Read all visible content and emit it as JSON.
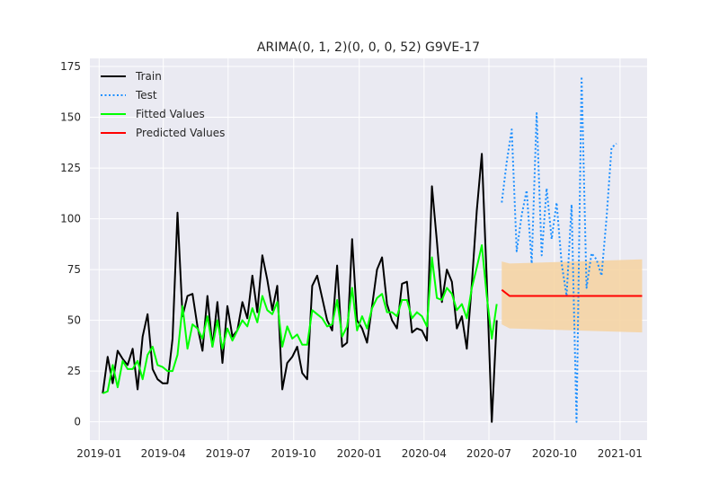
{
  "chart_data": {
    "type": "line",
    "title": "ARIMA(0, 1, 2)(0, 0, 0, 52) G9VE-17",
    "xlabel": "",
    "ylabel": "",
    "x_ticks": [
      "2019-01",
      "2019-04",
      "2019-07",
      "2019-10",
      "2020-01",
      "2020-04",
      "2020-07",
      "2020-10",
      "2021-01"
    ],
    "y_ticks": [
      0,
      25,
      50,
      75,
      100,
      125,
      150,
      175
    ],
    "xlim": [
      "2018-12-19",
      "2021-02-08"
    ],
    "ylim": [
      -9,
      179
    ],
    "grid": true,
    "legend_position": "top-left",
    "colors": {
      "background": "#eaeaf2",
      "grid": "#ffffff",
      "train": "#000000",
      "test": "#1e90ff",
      "fitted": "#00ff00",
      "predicted": "#ff0000",
      "confidence": "#f5d4a4"
    },
    "legend": [
      {
        "name": "Train",
        "key": "train"
      },
      {
        "name": "Test",
        "key": "test"
      },
      {
        "name": "Fitted Values",
        "key": "fitted"
      },
      {
        "name": "Predicted Values",
        "key": "predicted"
      }
    ],
    "series": {
      "train": {
        "name": "Train",
        "x": [
          "2019-01-06",
          "2019-01-13",
          "2019-01-20",
          "2019-01-27",
          "2019-02-03",
          "2019-02-10",
          "2019-02-17",
          "2019-02-24",
          "2019-03-03",
          "2019-03-10",
          "2019-03-17",
          "2019-03-24",
          "2019-03-31",
          "2019-04-07",
          "2019-04-14",
          "2019-04-21",
          "2019-04-28",
          "2019-05-05",
          "2019-05-12",
          "2019-05-19",
          "2019-05-26",
          "2019-06-02",
          "2019-06-09",
          "2019-06-16",
          "2019-06-23",
          "2019-06-30",
          "2019-07-07",
          "2019-07-14",
          "2019-07-21",
          "2019-07-28",
          "2019-08-04",
          "2019-08-11",
          "2019-08-18",
          "2019-08-25",
          "2019-09-01",
          "2019-09-08",
          "2019-09-15",
          "2019-09-22",
          "2019-09-29",
          "2019-10-06",
          "2019-10-13",
          "2019-10-20",
          "2019-10-27",
          "2019-11-03",
          "2019-11-10",
          "2019-11-17",
          "2019-11-24",
          "2019-12-01",
          "2019-12-08",
          "2019-12-15",
          "2019-12-22",
          "2019-12-29",
          "2020-01-05",
          "2020-01-12",
          "2020-01-19",
          "2020-01-26",
          "2020-02-02",
          "2020-02-09",
          "2020-02-16",
          "2020-02-23",
          "2020-03-01",
          "2020-03-08",
          "2020-03-15",
          "2020-03-22",
          "2020-03-29",
          "2020-04-05",
          "2020-04-12",
          "2020-04-19",
          "2020-04-26",
          "2020-05-03",
          "2020-05-10",
          "2020-05-17",
          "2020-05-24",
          "2020-05-31",
          "2020-06-07",
          "2020-06-14",
          "2020-06-21",
          "2020-06-28",
          "2020-07-05",
          "2020-07-12"
        ],
        "values": [
          14,
          32,
          19,
          35,
          31,
          28,
          36,
          16,
          42,
          53,
          26,
          21,
          19,
          19,
          41,
          103,
          52,
          62,
          63,
          47,
          35,
          62,
          37,
          59,
          29,
          57,
          42,
          45,
          59,
          51,
          72,
          54,
          82,
          70,
          55,
          67,
          16,
          29,
          32,
          37,
          24,
          21,
          67,
          72,
          61,
          50,
          45,
          77,
          37,
          39,
          90,
          50,
          46,
          39,
          57,
          75,
          81,
          58,
          50,
          46,
          68,
          69,
          44,
          46,
          45,
          40,
          116,
          89,
          59,
          75,
          69,
          46,
          52,
          36,
          68,
          104,
          132,
          70,
          0,
          50
        ]
      },
      "test": {
        "name": "Test",
        "x": [
          "2020-07-19",
          "2020-07-26",
          "2020-08-02",
          "2020-08-09",
          "2020-08-16",
          "2020-08-23",
          "2020-08-30",
          "2020-09-06",
          "2020-09-13",
          "2020-09-20",
          "2020-09-27",
          "2020-10-04",
          "2020-10-11",
          "2020-10-18",
          "2020-10-25",
          "2020-11-01",
          "2020-11-08",
          "2020-11-15",
          "2020-11-22",
          "2020-11-29",
          "2020-12-06",
          "2020-12-13",
          "2020-12-20",
          "2020-12-27"
        ],
        "values": [
          108,
          128,
          144,
          84,
          102,
          114,
          78,
          152,
          82,
          115,
          90,
          108,
          78,
          62,
          107,
          0,
          170,
          66,
          83,
          80,
          72,
          100,
          135,
          137
        ]
      },
      "fitted": {
        "name": "Fitted Values",
        "x": [
          "2019-01-06",
          "2019-01-13",
          "2019-01-20",
          "2019-01-27",
          "2019-02-03",
          "2019-02-10",
          "2019-02-17",
          "2019-02-24",
          "2019-03-03",
          "2019-03-10",
          "2019-03-17",
          "2019-03-24",
          "2019-03-31",
          "2019-04-07",
          "2019-04-14",
          "2019-04-21",
          "2019-04-28",
          "2019-05-05",
          "2019-05-12",
          "2019-05-19",
          "2019-05-26",
          "2019-06-02",
          "2019-06-09",
          "2019-06-16",
          "2019-06-23",
          "2019-06-30",
          "2019-07-07",
          "2019-07-14",
          "2019-07-21",
          "2019-07-28",
          "2019-08-04",
          "2019-08-11",
          "2019-08-18",
          "2019-08-25",
          "2019-09-01",
          "2019-09-08",
          "2019-09-15",
          "2019-09-22",
          "2019-09-29",
          "2019-10-06",
          "2019-10-13",
          "2019-10-20",
          "2019-10-27",
          "2019-11-03",
          "2019-11-10",
          "2019-11-17",
          "2019-11-24",
          "2019-12-01",
          "2019-12-08",
          "2019-12-15",
          "2019-12-22",
          "2019-12-29",
          "2020-01-05",
          "2020-01-12",
          "2020-01-19",
          "2020-01-26",
          "2020-02-02",
          "2020-02-09",
          "2020-02-16",
          "2020-02-23",
          "2020-03-01",
          "2020-03-08",
          "2020-03-15",
          "2020-03-22",
          "2020-03-29",
          "2020-04-05",
          "2020-04-12",
          "2020-04-19",
          "2020-04-26",
          "2020-05-03",
          "2020-05-10",
          "2020-05-17",
          "2020-05-24",
          "2020-05-31",
          "2020-06-07",
          "2020-06-14",
          "2020-06-21",
          "2020-06-28",
          "2020-07-05",
          "2020-07-12"
        ],
        "values": [
          14,
          15,
          28,
          17,
          30,
          26,
          26,
          30,
          21,
          33,
          37,
          28,
          27,
          25,
          25,
          33,
          57,
          36,
          48,
          46,
          41,
          52,
          37,
          50,
          36,
          46,
          40,
          45,
          50,
          47,
          56,
          49,
          62,
          55,
          53,
          59,
          37,
          47,
          41,
          43,
          38,
          38,
          55,
          53,
          51,
          47,
          48,
          60,
          42,
          47,
          66,
          45,
          52,
          46,
          56,
          61,
          63,
          54,
          54,
          52,
          60,
          60,
          51,
          54,
          52,
          47,
          81,
          61,
          60,
          66,
          63,
          55,
          58,
          51,
          66,
          76,
          87,
          62,
          41,
          58
        ]
      },
      "predicted": {
        "name": "Predicted Values",
        "x": [
          "2020-07-19",
          "2020-07-30",
          "2021-02-01"
        ],
        "values": [
          65,
          62,
          62
        ]
      },
      "confidence_interval": {
        "x": [
          "2020-07-19",
          "2020-07-30",
          "2021-02-01"
        ],
        "lower": [
          48,
          46,
          44
        ],
        "upper": [
          79,
          78,
          80
        ]
      }
    }
  }
}
